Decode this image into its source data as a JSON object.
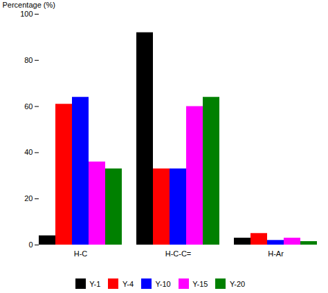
{
  "chart_data": {
    "type": "bar",
    "categories": [
      "H-C",
      "H-C-C=",
      "H-Ar"
    ],
    "series": [
      {
        "name": "Y-1",
        "color": "#000000",
        "values": [
          4,
          92,
          3
        ]
      },
      {
        "name": "Y-4",
        "color": "#ff0000",
        "values": [
          61,
          33,
          5
        ]
      },
      {
        "name": "Y-10",
        "color": "#0000ff",
        "values": [
          64,
          33,
          2
        ]
      },
      {
        "name": "Y-15",
        "color": "#ff00ff",
        "values": [
          36,
          60,
          3
        ]
      },
      {
        "name": "Y-20",
        "color": "#008000",
        "values": [
          33,
          64,
          1.5
        ]
      }
    ],
    "ylabel": "Percentage (%)",
    "ylim": [
      0,
      100
    ],
    "yticks": [
      0,
      20,
      40,
      60,
      80,
      100
    ],
    "grid": false,
    "legend": "bottom"
  }
}
